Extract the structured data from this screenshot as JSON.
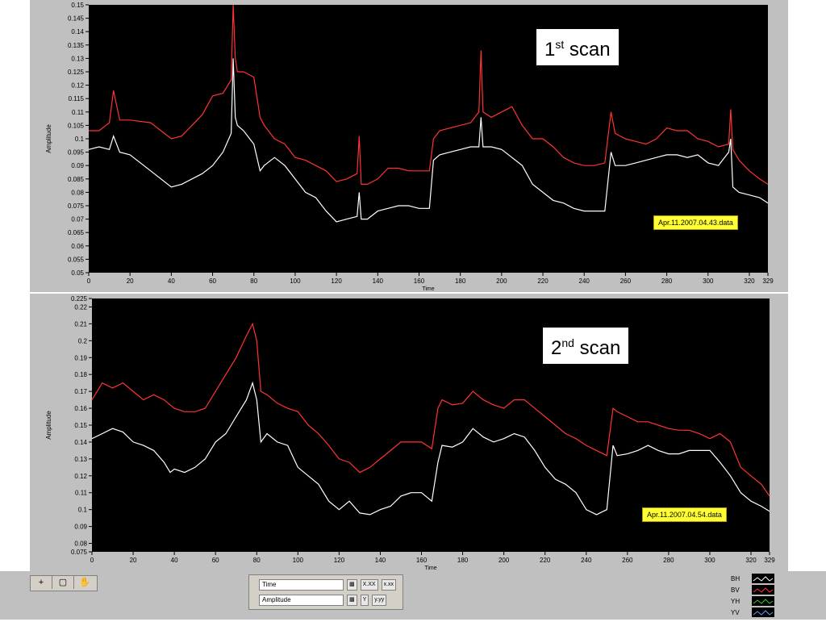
{
  "chart_data": [
    {
      "type": "line",
      "xlabel": "Time",
      "ylabel": "Amplitude",
      "xlim": [
        0,
        329
      ],
      "ylim": [
        0.05,
        0.15
      ],
      "x_ticks": [
        0,
        20,
        40,
        60,
        80,
        100,
        120,
        140,
        160,
        180,
        200,
        220,
        240,
        260,
        280,
        300,
        320,
        329
      ],
      "y_ticks": [
        0.05,
        0.055,
        0.06,
        0.065,
        0.07,
        0.075,
        0.08,
        0.085,
        0.09,
        0.095,
        0.1,
        0.105,
        0.11,
        0.115,
        0.12,
        0.125,
        0.13,
        0.135,
        0.14,
        0.145,
        0.15
      ],
      "annotation": {
        "main": "1",
        "sup": "st",
        "rest": " scan"
      },
      "file_label": "Apr.11.2007.04.43.data",
      "background": "#000000",
      "series": [
        {
          "color": "#ff3333",
          "x": [
            0,
            5,
            10,
            12,
            15,
            20,
            30,
            40,
            45,
            55,
            60,
            65,
            69,
            70,
            71,
            72,
            75,
            80,
            83,
            85,
            90,
            95,
            100,
            105,
            110,
            115,
            120,
            125,
            130,
            131,
            132,
            135,
            140,
            145,
            150,
            155,
            160,
            165,
            167,
            170,
            175,
            180,
            185,
            189,
            190,
            191,
            195,
            200,
            205,
            210,
            215,
            220,
            225,
            230,
            235,
            240,
            245,
            250,
            253,
            255,
            260,
            265,
            270,
            275,
            280,
            285,
            290,
            295,
            300,
            305,
            310,
            311,
            312,
            315,
            320,
            325,
            329
          ],
          "y": [
            0.103,
            0.103,
            0.106,
            0.118,
            0.107,
            0.107,
            0.106,
            0.1,
            0.101,
            0.109,
            0.116,
            0.117,
            0.122,
            0.15,
            0.13,
            0.125,
            0.125,
            0.123,
            0.108,
            0.105,
            0.1,
            0.098,
            0.093,
            0.092,
            0.09,
            0.088,
            0.084,
            0.085,
            0.087,
            0.101,
            0.083,
            0.083,
            0.085,
            0.089,
            0.089,
            0.088,
            0.088,
            0.088,
            0.1,
            0.103,
            0.104,
            0.105,
            0.106,
            0.11,
            0.133,
            0.11,
            0.108,
            0.11,
            0.112,
            0.105,
            0.1,
            0.1,
            0.097,
            0.093,
            0.091,
            0.09,
            0.09,
            0.091,
            0.11,
            0.102,
            0.1,
            0.099,
            0.098,
            0.1,
            0.104,
            0.103,
            0.103,
            0.1,
            0.099,
            0.097,
            0.098,
            0.111,
            0.096,
            0.092,
            0.088,
            0.085,
            0.083
          ]
        },
        {
          "color": "#ffffff",
          "x": [
            0,
            5,
            10,
            12,
            15,
            20,
            30,
            40,
            45,
            55,
            60,
            65,
            69,
            70,
            71,
            72,
            75,
            80,
            83,
            85,
            90,
            95,
            100,
            105,
            110,
            115,
            120,
            125,
            130,
            131,
            132,
            135,
            140,
            145,
            150,
            155,
            160,
            165,
            167,
            170,
            175,
            180,
            185,
            189,
            190,
            191,
            195,
            200,
            205,
            210,
            215,
            220,
            225,
            230,
            235,
            240,
            245,
            250,
            253,
            255,
            260,
            265,
            270,
            275,
            280,
            285,
            290,
            295,
            300,
            305,
            310,
            311,
            312,
            315,
            320,
            325,
            329
          ],
          "y": [
            0.096,
            0.097,
            0.096,
            0.101,
            0.095,
            0.094,
            0.088,
            0.082,
            0.083,
            0.087,
            0.09,
            0.095,
            0.102,
            0.13,
            0.108,
            0.105,
            0.103,
            0.098,
            0.088,
            0.09,
            0.093,
            0.09,
            0.085,
            0.08,
            0.078,
            0.073,
            0.069,
            0.07,
            0.071,
            0.08,
            0.07,
            0.07,
            0.073,
            0.074,
            0.075,
            0.075,
            0.074,
            0.074,
            0.092,
            0.094,
            0.095,
            0.096,
            0.097,
            0.097,
            0.108,
            0.097,
            0.097,
            0.096,
            0.093,
            0.09,
            0.083,
            0.08,
            0.077,
            0.076,
            0.074,
            0.073,
            0.073,
            0.073,
            0.095,
            0.09,
            0.09,
            0.091,
            0.092,
            0.093,
            0.094,
            0.094,
            0.093,
            0.094,
            0.091,
            0.09,
            0.095,
            0.1,
            0.082,
            0.08,
            0.079,
            0.078,
            0.076
          ]
        }
      ]
    },
    {
      "type": "line",
      "xlabel": "Time",
      "ylabel": "Amplitude",
      "xlim": [
        0,
        329
      ],
      "ylim": [
        0.075,
        0.225
      ],
      "x_ticks": [
        0,
        20,
        40,
        60,
        80,
        100,
        120,
        140,
        160,
        180,
        200,
        220,
        240,
        260,
        280,
        300,
        320,
        329
      ],
      "y_ticks": [
        0.075,
        0.08,
        0.09,
        0.1,
        0.11,
        0.12,
        0.13,
        0.14,
        0.15,
        0.16,
        0.17,
        0.18,
        0.19,
        0.2,
        0.21,
        0.22,
        0.225
      ],
      "annotation": {
        "main": "2",
        "sup": "nd",
        "rest": " scan"
      },
      "file_label": "Apr.11.2007.04.54.data",
      "background": "#000000",
      "series": [
        {
          "color": "#ff3333",
          "x": [
            0,
            5,
            10,
            15,
            20,
            25,
            30,
            35,
            38,
            40,
            45,
            50,
            55,
            60,
            65,
            70,
            75,
            78,
            80,
            82,
            85,
            90,
            95,
            100,
            105,
            110,
            115,
            120,
            125,
            130,
            135,
            140,
            145,
            150,
            155,
            160,
            165,
            168,
            170,
            175,
            180,
            185,
            190,
            195,
            200,
            205,
            210,
            215,
            220,
            225,
            230,
            235,
            240,
            245,
            250,
            253,
            255,
            260,
            265,
            270,
            275,
            280,
            285,
            290,
            295,
            300,
            305,
            310,
            315,
            320,
            325,
            329
          ],
          "y": [
            0.165,
            0.175,
            0.172,
            0.175,
            0.17,
            0.165,
            0.168,
            0.165,
            0.162,
            0.16,
            0.158,
            0.158,
            0.16,
            0.17,
            0.18,
            0.19,
            0.203,
            0.21,
            0.2,
            0.17,
            0.168,
            0.163,
            0.16,
            0.158,
            0.15,
            0.145,
            0.138,
            0.13,
            0.128,
            0.122,
            0.125,
            0.13,
            0.135,
            0.14,
            0.14,
            0.14,
            0.136,
            0.16,
            0.165,
            0.162,
            0.163,
            0.17,
            0.165,
            0.162,
            0.16,
            0.165,
            0.165,
            0.16,
            0.155,
            0.15,
            0.145,
            0.142,
            0.138,
            0.135,
            0.132,
            0.16,
            0.158,
            0.155,
            0.152,
            0.152,
            0.15,
            0.148,
            0.147,
            0.147,
            0.145,
            0.142,
            0.145,
            0.14,
            0.125,
            0.12,
            0.115,
            0.108
          ]
        },
        {
          "color": "#ffffff",
          "x": [
            0,
            5,
            10,
            15,
            20,
            25,
            30,
            35,
            38,
            40,
            45,
            50,
            55,
            60,
            65,
            70,
            75,
            78,
            80,
            82,
            85,
            90,
            95,
            100,
            105,
            110,
            115,
            120,
            125,
            130,
            135,
            140,
            145,
            150,
            155,
            160,
            165,
            168,
            170,
            175,
            180,
            185,
            190,
            195,
            200,
            205,
            210,
            215,
            220,
            225,
            230,
            235,
            240,
            245,
            250,
            253,
            255,
            260,
            265,
            270,
            275,
            280,
            285,
            290,
            295,
            300,
            305,
            310,
            315,
            320,
            325,
            329
          ],
          "y": [
            0.142,
            0.145,
            0.148,
            0.146,
            0.14,
            0.138,
            0.135,
            0.128,
            0.122,
            0.124,
            0.122,
            0.125,
            0.13,
            0.14,
            0.145,
            0.155,
            0.165,
            0.175,
            0.165,
            0.14,
            0.145,
            0.14,
            0.138,
            0.125,
            0.12,
            0.115,
            0.105,
            0.1,
            0.105,
            0.098,
            0.097,
            0.1,
            0.102,
            0.108,
            0.11,
            0.11,
            0.105,
            0.128,
            0.138,
            0.137,
            0.14,
            0.148,
            0.143,
            0.14,
            0.142,
            0.145,
            0.143,
            0.135,
            0.125,
            0.118,
            0.115,
            0.11,
            0.1,
            0.097,
            0.1,
            0.138,
            0.132,
            0.133,
            0.135,
            0.138,
            0.135,
            0.133,
            0.133,
            0.135,
            0.135,
            0.135,
            0.128,
            0.12,
            0.11,
            0.105,
            0.102,
            0.099
          ]
        }
      ]
    }
  ],
  "controls": {
    "x_axis_name": "Time",
    "y_axis_name": "Amplitude",
    "x_btn_1": "X.XX",
    "x_btn_2": "x.xx",
    "y_btn_1": "Y",
    "y_btn_2": "y.yy"
  },
  "legend": {
    "items": [
      {
        "name": "BH",
        "color": "#ffffff"
      },
      {
        "name": "BV",
        "color": "#ff3333"
      },
      {
        "name": "YH",
        "color": "#33cc33"
      },
      {
        "name": "YV",
        "color": "#6699ff"
      }
    ]
  }
}
